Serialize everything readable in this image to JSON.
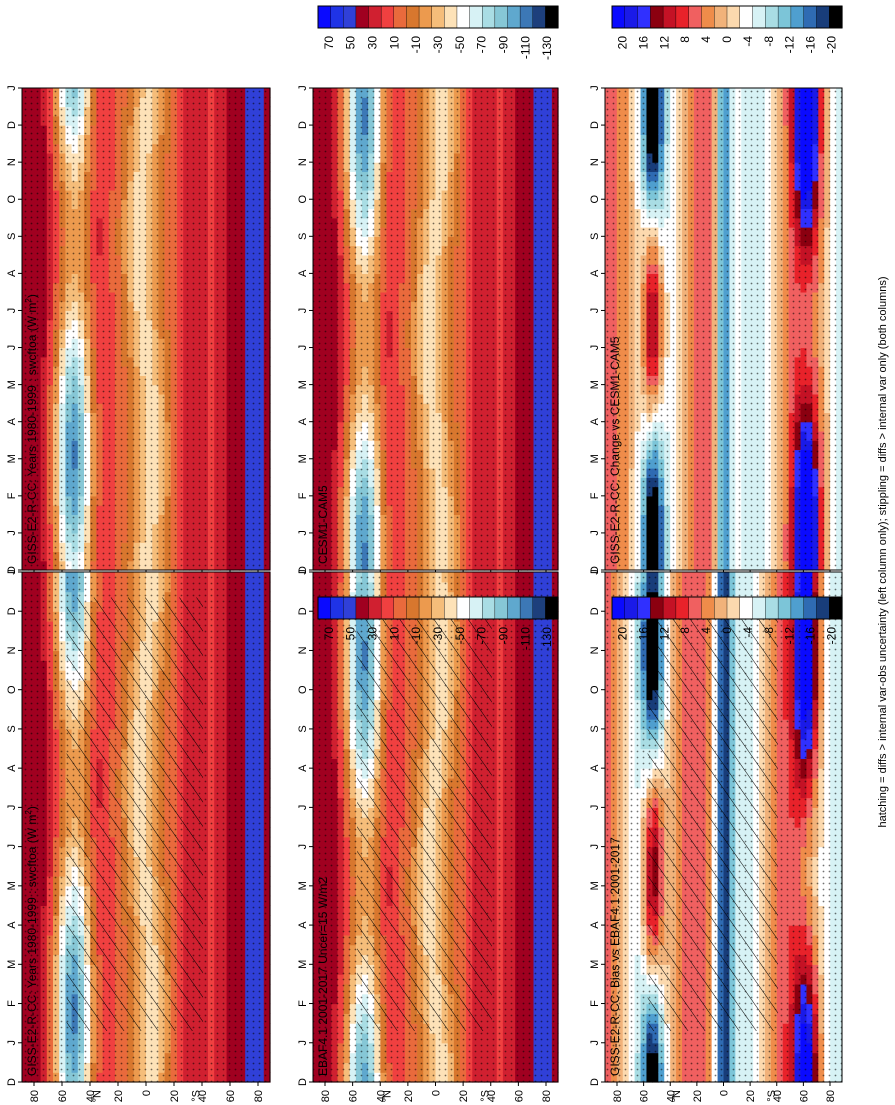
{
  "footer_note": "hatching = diffs > internal var-obs uncertainty (left column only); stippling = diffs > internal var only (both columns)",
  "colors": {
    "diverging_main": [
      "#0a0aff",
      "#1f33e6",
      "#3040d8",
      "#a00020",
      "#d02030",
      "#f04040",
      "#e96a3c",
      "#d8772e",
      "#ec9a4e",
      "#f5bd7a",
      "#fde2b8",
      "#ffffff",
      "#d7f2f5",
      "#a9dde4",
      "#86c7d6",
      "#5fa8ce",
      "#3c78b6",
      "#1d3f7c",
      "#000000"
    ],
    "diverging_diff": [
      "#0a0aff",
      "#1a1ae8",
      "#3030ff",
      "#8b0010",
      "#c41225",
      "#e8222a",
      "#f06060",
      "#ef8c4a",
      "#f1b27a",
      "#fcd9ae",
      "#ffffff",
      "#d7f2f5",
      "#a9dde4",
      "#7cc5d8",
      "#4f9fcf",
      "#2f6bb3",
      "#183d7a",
      "#000000"
    ]
  },
  "panels": [
    {
      "id": "p1",
      "title": "GISS-E2-R-CC: Years 1980-1999 : swcftoa (W m",
      "title_sup": "2",
      "title_suffix": ")",
      "kind": "main",
      "hatch": true
    },
    {
      "id": "p2",
      "title": "GISS-E2-R-CC: Years 1980-1999 : swcftoa (W m",
      "title_sup": "2",
      "title_suffix": ")",
      "kind": "main",
      "hatch": false
    },
    {
      "id": "p3",
      "title": "EBAF4.1 2001-2017 Uncer=15 W/m2",
      "title_sup": "",
      "title_suffix": "",
      "kind": "main",
      "hatch": true
    },
    {
      "id": "p4",
      "title": "CESM1-CAM5",
      "title_sup": "",
      "title_suffix": "",
      "kind": "main",
      "hatch": false
    },
    {
      "id": "p5",
      "title": "GISS-E2-R-CC: Bias vs EBAF4.1 2001-2017",
      "title_sup": "",
      "title_suffix": "",
      "kind": "diff",
      "hatch": true
    },
    {
      "id": "p6",
      "title": "GISS-E2-R-CC: Change vs CESM1-CAM5",
      "title_sup": "",
      "title_suffix": "",
      "kind": "diff",
      "hatch": false
    }
  ],
  "colorbars": [
    {
      "id": "cb1",
      "kind": "main",
      "labels": [
        "70",
        "50",
        "30",
        "10",
        "-10",
        "-30",
        "-50",
        "-70",
        "-90",
        "-110",
        "-130"
      ]
    },
    {
      "id": "cb2",
      "kind": "main",
      "labels": [
        "70",
        "50",
        "30",
        "10",
        "-10",
        "-30",
        "-50",
        "-70",
        "-90",
        "-110",
        "-130"
      ]
    },
    {
      "id": "cb3",
      "kind": "diff",
      "labels": [
        "20",
        "16",
        "12",
        "8",
        "4",
        "0",
        "-4",
        "-8",
        "-12",
        "-16",
        "-20"
      ]
    },
    {
      "id": "cb4",
      "kind": "diff",
      "labels": [
        "20",
        "16",
        "12",
        "8",
        "4",
        "0",
        "-4",
        "-8",
        "-12",
        "-16",
        "-20"
      ]
    }
  ],
  "chart_data": [
    {
      "type": "heatmap",
      "title": "GISS-E2-R-CC: Years 1980-1999 : swcftoa (W m^-2)",
      "x_ticks": [
        "D",
        "J",
        "F",
        "M",
        "A",
        "M",
        "J",
        "J",
        "A",
        "S",
        "O",
        "N",
        "D",
        "J"
      ],
      "y_ticks": [
        "80",
        "60",
        "40",
        "20",
        "0",
        "20",
        "40",
        "60",
        "80"
      ],
      "y_label_north": "°N",
      "y_label_south": "°S",
      "colorbar": [
        70,
        50,
        30,
        10,
        -10,
        -30,
        -50,
        -70,
        -90,
        -110,
        -130
      ]
    },
    {
      "type": "heatmap",
      "title": "EBAF4.1 2001-2017 Uncer=15 W/m2",
      "x_ticks": [
        "D",
        "J",
        "F",
        "M",
        "A",
        "M",
        "J",
        "J",
        "A",
        "S",
        "O",
        "N",
        "D",
        "J"
      ],
      "y_ticks": [
        "80",
        "60",
        "40",
        "20",
        "0",
        "20",
        "40",
        "60",
        "80"
      ],
      "colorbar": [
        70,
        50,
        30,
        10,
        -10,
        -30,
        -50,
        -70,
        -90,
        -110,
        -130
      ]
    },
    {
      "type": "heatmap",
      "title": "CESM1-CAM5",
      "x_ticks": [
        "D",
        "J",
        "F",
        "M",
        "A",
        "M",
        "J",
        "J",
        "A",
        "S",
        "O",
        "N",
        "D",
        "J"
      ],
      "y_ticks": [
        "80",
        "60",
        "40",
        "20",
        "0",
        "20",
        "40",
        "60",
        "80"
      ],
      "colorbar": [
        70,
        50,
        30,
        10,
        -10,
        -30,
        -50,
        -70,
        -90,
        -110,
        -130
      ]
    },
    {
      "type": "heatmap",
      "title": "GISS-E2-R-CC: Bias vs EBAF4.1 2001-2017",
      "x_ticks": [
        "D",
        "J",
        "F",
        "M",
        "A",
        "M",
        "J",
        "J",
        "A",
        "S",
        "O",
        "N",
        "D",
        "J"
      ],
      "y_ticks": [
        "80",
        "60",
        "40",
        "20",
        "0",
        "20",
        "40",
        "60",
        "80"
      ],
      "colorbar": [
        20,
        16,
        12,
        8,
        4,
        0,
        -4,
        -8,
        -12,
        -16,
        -20
      ]
    },
    {
      "type": "heatmap",
      "title": "GISS-E2-R-CC: Change vs CESM1-CAM5",
      "x_ticks": [
        "D",
        "J",
        "F",
        "M",
        "A",
        "M",
        "J",
        "J",
        "A",
        "S",
        "O",
        "N",
        "D",
        "J"
      ],
      "y_ticks": [
        "80",
        "60",
        "40",
        "20",
        "0",
        "20",
        "40",
        "60",
        "80"
      ],
      "colorbar": [
        20,
        16,
        12,
        8,
        4,
        0,
        -4,
        -8,
        -12,
        -16,
        -20
      ]
    }
  ],
  "axis": {
    "x_ticks": [
      "D",
      "J",
      "F",
      "M",
      "A",
      "M",
      "J",
      "J",
      "A",
      "S",
      "O",
      "N",
      "D",
      "J"
    ],
    "y_ticks": [
      "80",
      "60",
      "40",
      "20",
      "0",
      "20",
      "40",
      "60",
      "80"
    ],
    "north_label": "°N",
    "south_label": "°S"
  }
}
